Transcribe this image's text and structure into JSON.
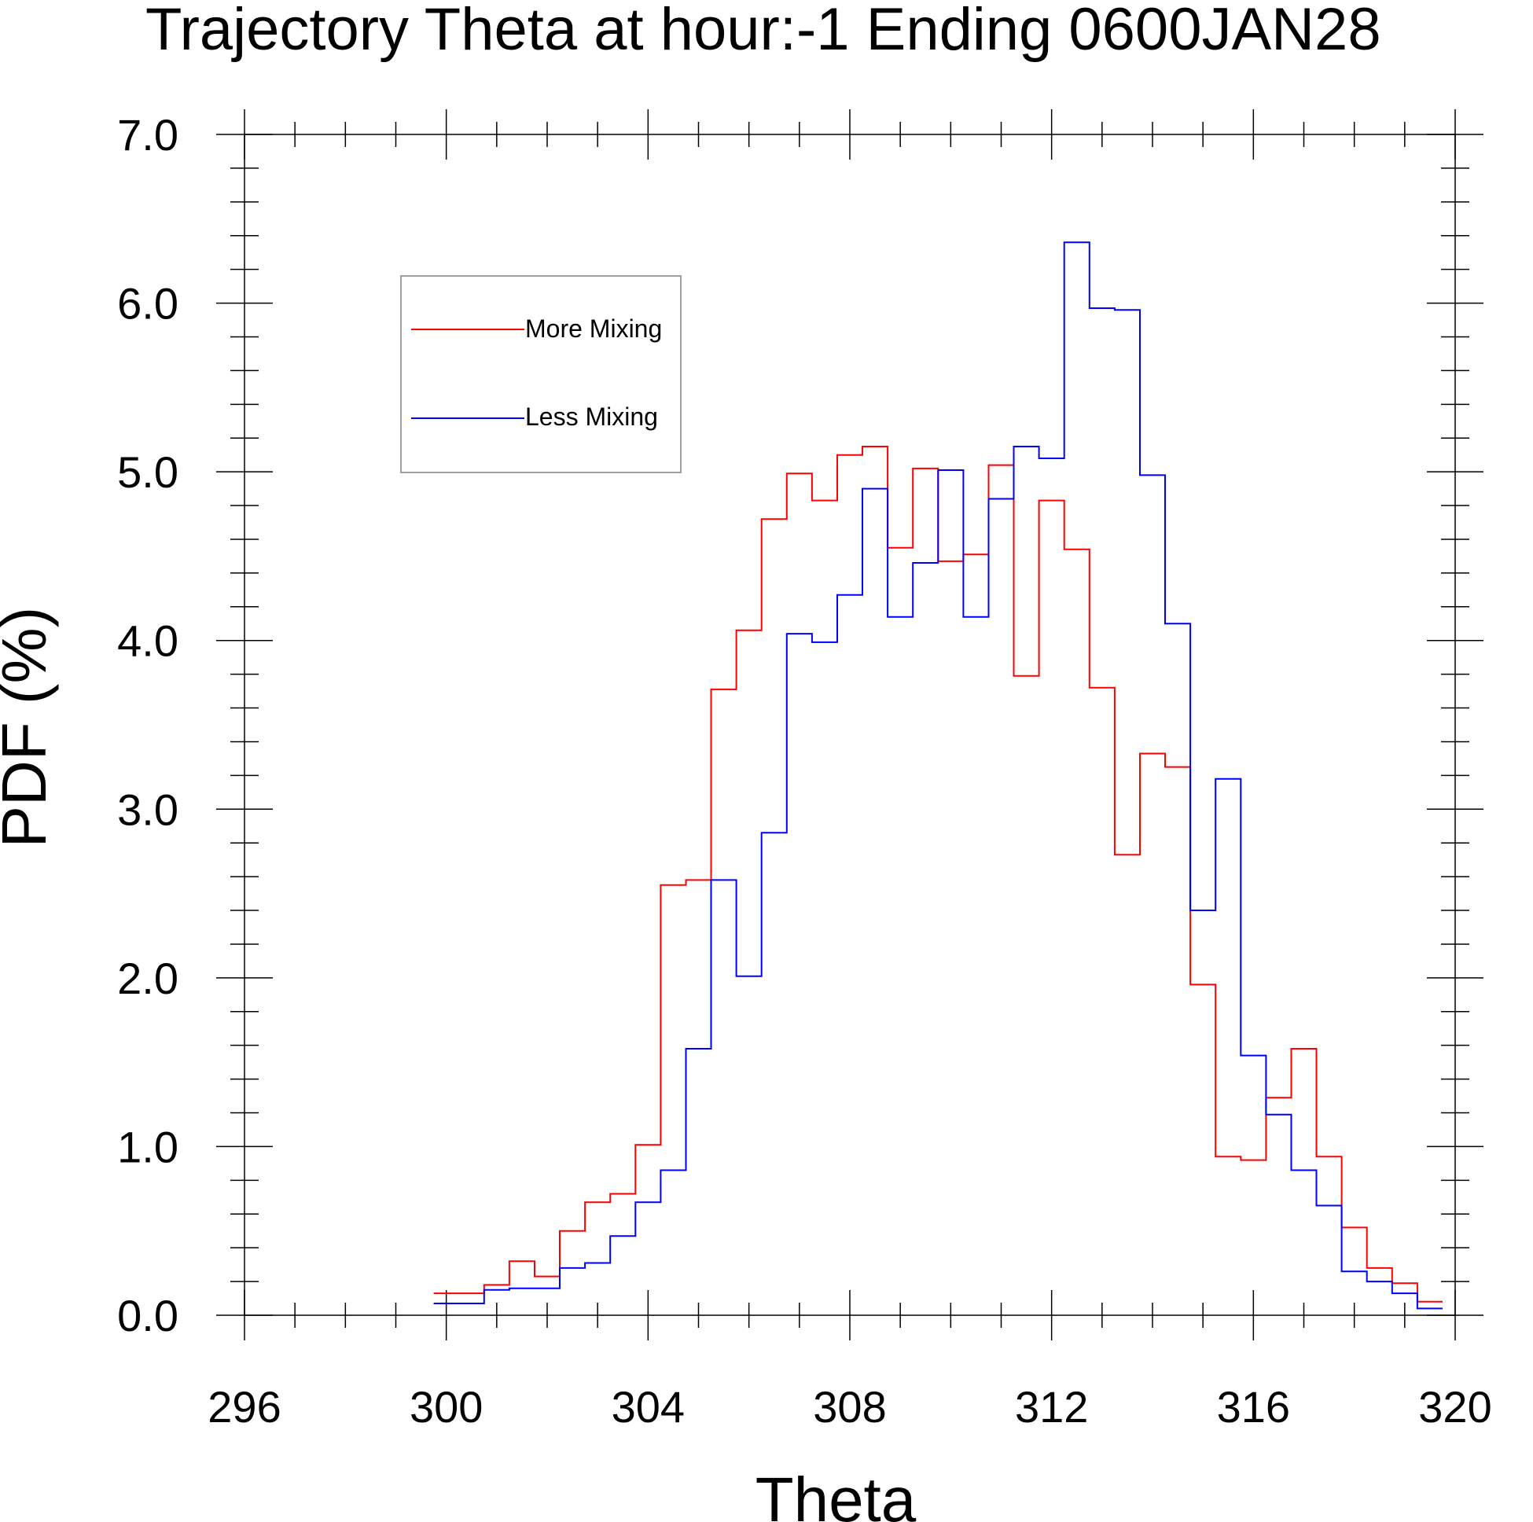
{
  "chart_data": {
    "type": "line",
    "step": true,
    "title": "Trajectory Theta at hour:-1 Ending 0600JAN28",
    "xlabel": "Theta",
    "ylabel": "PDF (%)",
    "xlim": [
      296,
      320
    ],
    "ylim": [
      0.0,
      7.0
    ],
    "x_ticks": [
      "296",
      "300",
      "304",
      "308",
      "312",
      "316",
      "320"
    ],
    "y_ticks": [
      "0.0",
      "1.0",
      "2.0",
      "3.0",
      "4.0",
      "5.0",
      "6.0",
      "7.0"
    ],
    "grid": false,
    "legend_position": "top-left",
    "bin_edges": [
      299.75,
      300.75,
      301.25,
      301.75,
      302.25,
      302.75,
      303.25,
      303.75,
      304.25,
      304.75,
      305.25,
      305.75,
      306.25,
      306.75,
      307.25,
      307.75,
      308.25,
      308.75,
      309.25,
      309.75,
      310.25,
      310.75,
      311.25,
      311.75,
      312.25,
      312.75,
      313.25,
      313.75,
      314.25,
      314.75,
      315.25,
      315.75,
      316.25,
      316.75,
      317.25,
      317.75,
      318.25,
      318.75,
      319.25,
      319.75
    ],
    "series": [
      {
        "name": "More Mixing",
        "color": "#ff0000",
        "values": [
          0.13,
          0.18,
          0.32,
          0.23,
          0.5,
          0.67,
          0.72,
          1.01,
          2.55,
          2.58,
          3.71,
          4.06,
          4.72,
          4.99,
          4.83,
          5.1,
          5.15,
          4.55,
          5.02,
          4.47,
          4.51,
          5.04,
          3.79,
          4.83,
          4.54,
          3.72,
          2.73,
          3.33,
          3.25,
          1.96,
          0.94,
          0.92,
          1.29,
          1.58,
          0.94,
          0.52,
          0.28,
          0.19,
          0.08
        ]
      },
      {
        "name": "Less Mixing",
        "color": "#0000ff",
        "values": [
          0.07,
          0.15,
          0.16,
          0.16,
          0.28,
          0.31,
          0.47,
          0.67,
          0.86,
          1.58,
          2.58,
          2.01,
          2.86,
          4.04,
          3.99,
          4.27,
          4.9,
          4.14,
          4.46,
          5.01,
          4.14,
          4.84,
          5.15,
          5.08,
          6.36,
          5.97,
          5.96,
          4.98,
          4.1,
          2.4,
          3.18,
          1.54,
          1.19,
          0.86,
          0.65,
          0.26,
          0.2,
          0.13,
          0.04
        ]
      }
    ]
  }
}
